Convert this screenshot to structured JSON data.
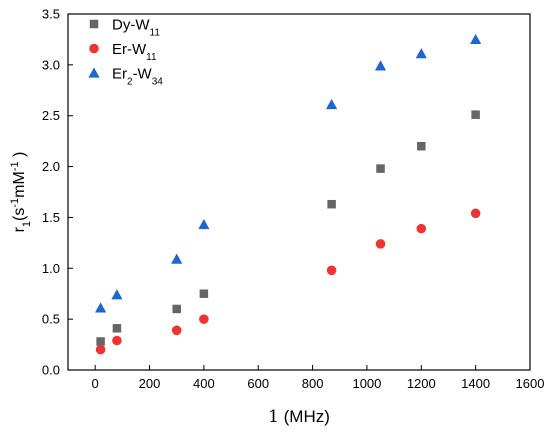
{
  "chart_data": {
    "type": "scatter",
    "xlabel": {
      "main": "1",
      "unit": " (MHz)"
    },
    "ylabel": {
      "base": "r",
      "sub": "1",
      "part1": "(s",
      "sup1": "-1",
      "part2": "mM",
      "sup2": "-1",
      "part3": " )"
    },
    "xlim": [
      -100,
      1600
    ],
    "ylim": [
      0.0,
      3.5
    ],
    "xticks": [
      {
        "value": 0,
        "label": "0"
      },
      {
        "value": 200,
        "label": "200"
      },
      {
        "value": 400,
        "label": "400"
      },
      {
        "value": 600,
        "label": "600"
      },
      {
        "value": 800,
        "label": "800"
      },
      {
        "value": 1000,
        "label": "1000"
      },
      {
        "value": 1200,
        "label": "1200"
      },
      {
        "value": 1400,
        "label": "1400"
      },
      {
        "value": 1600,
        "label": "1600"
      }
    ],
    "yticks": [
      {
        "value": 0.0,
        "label": "0.0"
      },
      {
        "value": 0.5,
        "label": "0.5"
      },
      {
        "value": 1.0,
        "label": "1.0"
      },
      {
        "value": 1.5,
        "label": "1.5"
      },
      {
        "value": 2.0,
        "label": "2.0"
      },
      {
        "value": 2.5,
        "label": "2.5"
      },
      {
        "value": 3.0,
        "label": "3.0"
      },
      {
        "value": 3.5,
        "label": "3.5"
      }
    ],
    "grid": false,
    "legend_position": "top-left",
    "series": [
      {
        "name": "Dy-W11",
        "legend": {
          "base": "Dy-W",
          "sub": "11",
          "mid": "",
          "sub2": ""
        },
        "marker": "square",
        "color": "#666666",
        "points": [
          {
            "x": 20,
            "y": 0.28
          },
          {
            "x": 80,
            "y": 0.41
          },
          {
            "x": 300,
            "y": 0.6
          },
          {
            "x": 400,
            "y": 0.75
          },
          {
            "x": 870,
            "y": 1.63
          },
          {
            "x": 1050,
            "y": 1.98
          },
          {
            "x": 1200,
            "y": 2.2
          },
          {
            "x": 1400,
            "y": 2.51
          }
        ]
      },
      {
        "name": "Er-W11",
        "legend": {
          "base": "Er-W",
          "sub": "11",
          "mid": "",
          "sub2": ""
        },
        "marker": "circle",
        "color": "#ee3333",
        "points": [
          {
            "x": 20,
            "y": 0.2
          },
          {
            "x": 80,
            "y": 0.29
          },
          {
            "x": 300,
            "y": 0.39
          },
          {
            "x": 400,
            "y": 0.5
          },
          {
            "x": 870,
            "y": 0.98
          },
          {
            "x": 1050,
            "y": 1.24
          },
          {
            "x": 1200,
            "y": 1.39
          },
          {
            "x": 1400,
            "y": 1.54
          }
        ]
      },
      {
        "name": "Er2-W34",
        "legend": {
          "base": "Er",
          "sub": "2",
          "mid": "-W",
          "sub2": "34"
        },
        "marker": "triangle",
        "color": "#1f66d1",
        "points": [
          {
            "x": 20,
            "y": 0.61
          },
          {
            "x": 80,
            "y": 0.74
          },
          {
            "x": 300,
            "y": 1.09
          },
          {
            "x": 400,
            "y": 1.43
          },
          {
            "x": 870,
            "y": 2.61
          },
          {
            "x": 1050,
            "y": 2.99
          },
          {
            "x": 1200,
            "y": 3.11
          },
          {
            "x": 1400,
            "y": 3.25
          }
        ]
      }
    ]
  }
}
